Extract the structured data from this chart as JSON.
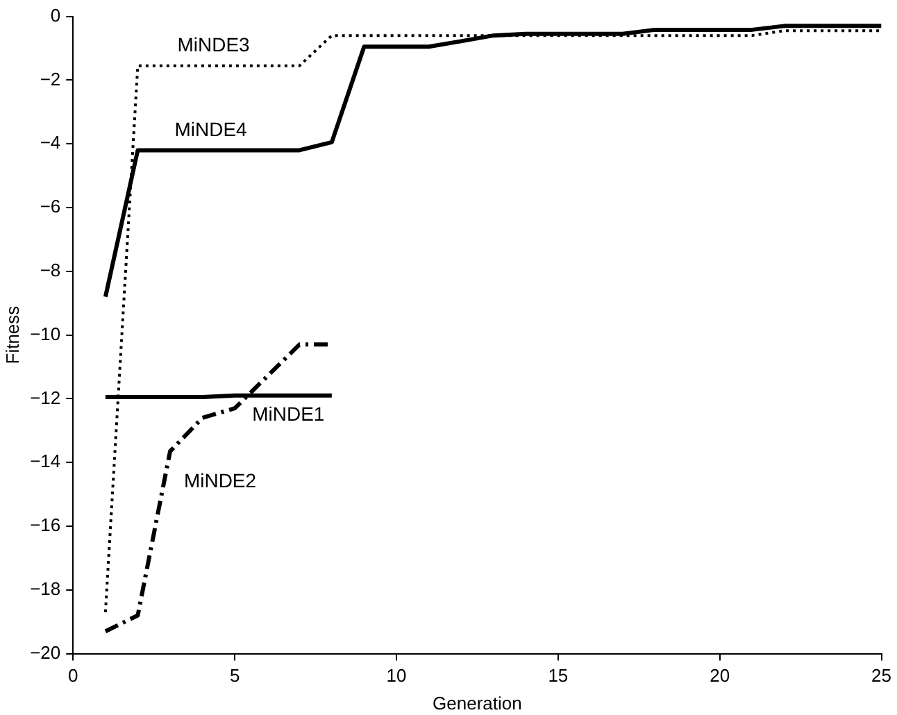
{
  "chart_data": {
    "type": "line",
    "xlabel": "Generation",
    "ylabel": "Fitness",
    "xlim": [
      0,
      25
    ],
    "xticks": [
      0,
      5,
      10,
      15,
      20,
      25
    ],
    "ylim": [
      -20,
      0
    ],
    "yticks": [
      -20,
      -18,
      -16,
      -14,
      -12,
      -10,
      -8,
      -6,
      -4,
      -2,
      0
    ],
    "grid": false,
    "legend": false,
    "marker": "none",
    "series": [
      {
        "name": "MiNDE1",
        "color": "#000000",
        "line_style": "solid",
        "x": [
          1,
          2,
          3,
          4,
          5,
          6,
          7,
          8
        ],
        "values": [
          -11.95,
          -11.95,
          -11.95,
          -11.95,
          -11.9,
          -11.9,
          -11.9,
          -11.9
        ]
      },
      {
        "name": "MiNDE2",
        "color": "#000000",
        "line_style": "dashed",
        "x": [
          1,
          2,
          3,
          4,
          5,
          6,
          7,
          8
        ],
        "values": [
          -19.3,
          -18.8,
          -13.65,
          -12.6,
          -12.3,
          -11.3,
          -10.3,
          -10.3
        ]
      },
      {
        "name": "MiNDE3",
        "color": "#000000",
        "line_style": "dotted",
        "x": [
          1,
          2,
          3,
          4,
          5,
          6,
          7,
          8,
          9,
          10,
          11,
          12,
          13,
          14,
          15,
          16,
          17,
          18,
          19,
          20,
          21,
          22,
          23,
          24,
          25
        ],
        "values": [
          -18.7,
          -1.55,
          -1.55,
          -1.55,
          -1.55,
          -1.55,
          -1.55,
          -0.6,
          -0.6,
          -0.6,
          -0.6,
          -0.6,
          -0.6,
          -0.6,
          -0.6,
          -0.6,
          -0.6,
          -0.6,
          -0.6,
          -0.6,
          -0.6,
          -0.45,
          -0.45,
          -0.45,
          -0.45
        ]
      },
      {
        "name": "MiNDE4",
        "color": "#000000",
        "line_style": "solid",
        "x": [
          1,
          2,
          3,
          4,
          5,
          6,
          7,
          8,
          9,
          10,
          11,
          12,
          13,
          14,
          15,
          16,
          17,
          18,
          19,
          20,
          21,
          22,
          23,
          24,
          25
        ],
        "values": [
          -8.8,
          -4.2,
          -4.2,
          -4.2,
          -4.2,
          -4.2,
          -4.2,
          -3.95,
          -0.95,
          -0.95,
          -0.95,
          -0.78,
          -0.6,
          -0.55,
          -0.55,
          -0.55,
          -0.55,
          -0.42,
          -0.42,
          -0.42,
          -0.42,
          -0.3,
          -0.3,
          -0.3,
          -0.3
        ]
      }
    ]
  }
}
